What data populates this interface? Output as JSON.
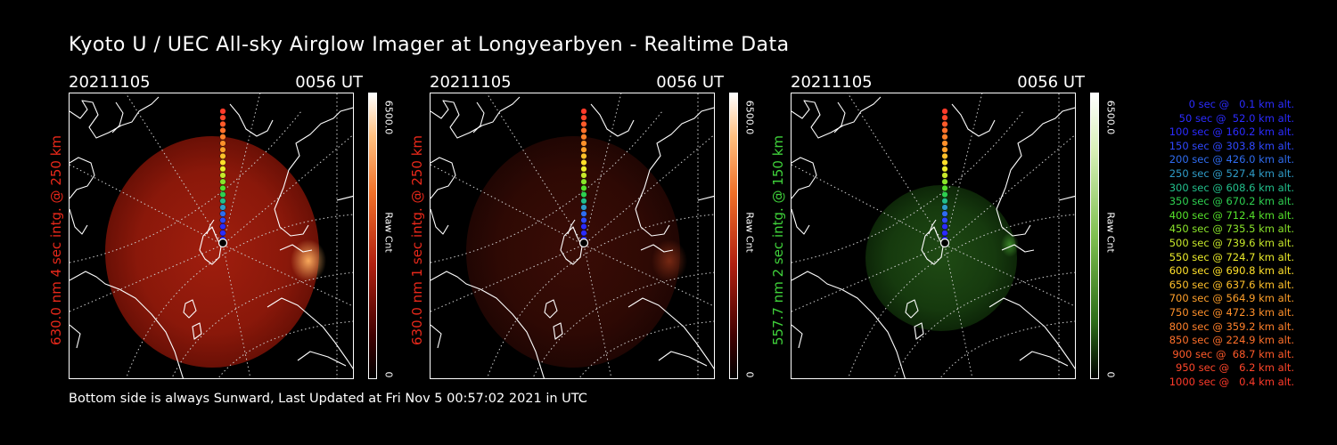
{
  "title": "Kyoto U / UEC All-sky Airglow Imager at Longyearbyen - Realtime Data",
  "panels": [
    {
      "date": "20211105",
      "time": "0056 UT",
      "ylabel": "630.0 nm 4 sec intg. @ 250 km",
      "label_color": "#e8281a",
      "emission": "red",
      "brightness": "bright",
      "colorbar_max": "6500.0",
      "colorbar_unit": "Raw Cnt",
      "colorbar_min": "0"
    },
    {
      "date": "20211105",
      "time": "0056 UT",
      "ylabel": "630.0 nm 1 sec intg. @ 250 km",
      "label_color": "#e8281a",
      "emission": "red",
      "brightness": "dim",
      "colorbar_max": "6500.0",
      "colorbar_unit": "Raw Cnt",
      "colorbar_min": "0"
    },
    {
      "date": "20211105",
      "time": "0056 UT",
      "ylabel": "557.7 nm 2 sec intg. @ 150 km",
      "label_color": "#3fd13a",
      "emission": "green",
      "brightness": "dim",
      "colorbar_max": "6500.0",
      "colorbar_unit": "Raw Cnt",
      "colorbar_min": "0"
    }
  ],
  "legend": [
    {
      "text": "0 sec @   0.1 km alt.",
      "color": "#2b2bff"
    },
    {
      "text": "50 sec @  52.0 km alt.",
      "color": "#2b2bff"
    },
    {
      "text": "100 sec @ 160.2 km alt.",
      "color": "#2b2bff"
    },
    {
      "text": "150 sec @ 303.8 km alt.",
      "color": "#2f48ff"
    },
    {
      "text": "200 sec @ 426.0 km alt.",
      "color": "#2f6cf0"
    },
    {
      "text": "250 sec @ 527.4 km alt.",
      "color": "#2f9cc8"
    },
    {
      "text": "300 sec @ 608.6 km alt.",
      "color": "#22c08c"
    },
    {
      "text": "350 sec @ 670.2 km alt.",
      "color": "#2ed050"
    },
    {
      "text": "400 sec @ 712.4 km alt.",
      "color": "#55e02a"
    },
    {
      "text": "450 sec @ 735.5 km alt.",
      "color": "#8ae42a"
    },
    {
      "text": "500 sec @ 739.6 km alt.",
      "color": "#c8e82a"
    },
    {
      "text": "550 sec @ 724.7 km alt.",
      "color": "#ecec2a"
    },
    {
      "text": "600 sec @ 690.8 km alt.",
      "color": "#ffe02a"
    },
    {
      "text": "650 sec @ 637.6 km alt.",
      "color": "#ffc02a"
    },
    {
      "text": "700 sec @ 564.9 km alt.",
      "color": "#ffa02a"
    },
    {
      "text": "750 sec @ 472.3 km alt.",
      "color": "#ff902a"
    },
    {
      "text": "800 sec @ 359.2 km alt.",
      "color": "#ff802a"
    },
    {
      "text": "850 sec @ 224.9 km alt.",
      "color": "#ff702a"
    },
    {
      "text": "900 sec @  68.7 km alt.",
      "color": "#ff5a2a"
    },
    {
      "text": "950 sec @   6.2 km alt.",
      "color": "#ff462a"
    },
    {
      "text": "1000 sec @   0.4 km alt.",
      "color": "#ff3a2a"
    }
  ],
  "footer": "Bottom side is always Sunward, Last Updated at Fri Nov  5 00:57:02 2021 in UTC"
}
